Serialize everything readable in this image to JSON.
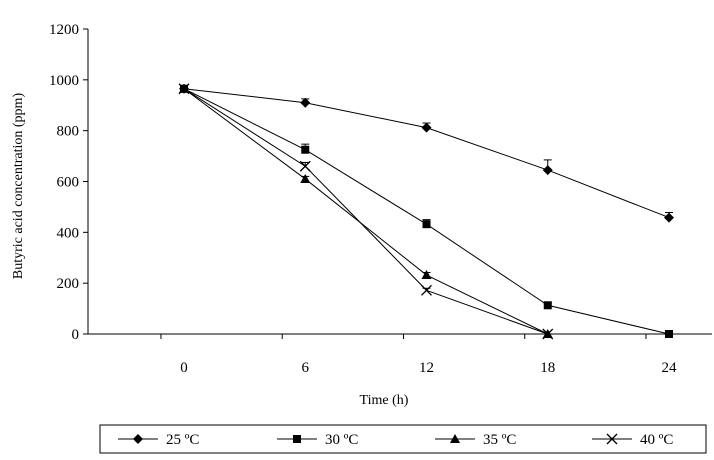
{
  "chart_data": {
    "type": "line",
    "title": "",
    "xlabel": "Time (h)",
    "ylabel": "Butyric acid concentration (ppm)",
    "x": [
      0,
      6,
      12,
      18,
      24
    ],
    "x_tick_labels": [
      "0",
      "6",
      "12",
      "18",
      "24"
    ],
    "ylim": [
      0,
      1200
    ],
    "y_ticks": [
      0,
      200,
      400,
      600,
      800,
      1000,
      1200
    ],
    "y_tick_labels": [
      "0",
      "200",
      "400",
      "600",
      "800",
      "1000",
      "1200"
    ],
    "grid": false,
    "legend_position": "bottom",
    "series": [
      {
        "name": "25 ºC",
        "marker": "diamond",
        "values": [
          965,
          910,
          812,
          645,
          458
        ],
        "errors": [
          10,
          15,
          18,
          40,
          20
        ]
      },
      {
        "name": "30 ºC",
        "marker": "square",
        "values": [
          965,
          725,
          432,
          113,
          0
        ],
        "errors": [
          10,
          22,
          18,
          8,
          10
        ]
      },
      {
        "name": "35 ºC",
        "marker": "triangle",
        "values": [
          965,
          610,
          232,
          0,
          null
        ],
        "errors": [
          10,
          10,
          10,
          0,
          null
        ]
      },
      {
        "name": "40 ºC",
        "marker": "x",
        "values": [
          965,
          660,
          172,
          0,
          null
        ],
        "errors": [
          10,
          15,
          8,
          0,
          null
        ]
      }
    ]
  }
}
